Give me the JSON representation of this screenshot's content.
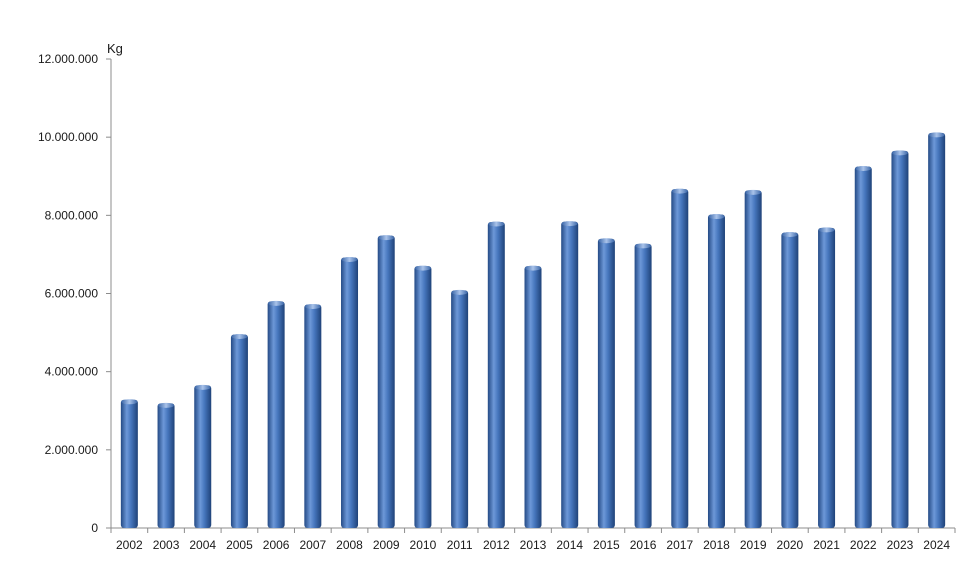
{
  "chart_data": {
    "type": "bar",
    "title": "",
    "xlabel": "",
    "ylabel": "Kg",
    "ylim": [
      0,
      12000000
    ],
    "yticks": [
      0,
      2000000,
      4000000,
      6000000,
      8000000,
      10000000,
      12000000
    ],
    "ytick_labels": [
      "0",
      "2.000.000",
      "4.000.000",
      "6.000.000",
      "8.000.000",
      "10.000.000",
      "12.000.000"
    ],
    "grid": false,
    "legend": "none",
    "bar_color": "#3d6fb4",
    "categories": [
      "2002",
      "2003",
      "2004",
      "2005",
      "2006",
      "2007",
      "2008",
      "2009",
      "2010",
      "2011",
      "2012",
      "2013",
      "2014",
      "2015",
      "2016",
      "2017",
      "2018",
      "2019",
      "2020",
      "2021",
      "2022",
      "2023",
      "2024"
    ],
    "values": [
      3280000,
      3190000,
      3650000,
      4950000,
      5800000,
      5720000,
      6920000,
      7480000,
      6700000,
      6080000,
      7830000,
      6700000,
      7840000,
      7400000,
      7270000,
      8670000,
      8020000,
      8640000,
      7560000,
      7680000,
      9250000,
      9650000,
      10110000
    ]
  }
}
